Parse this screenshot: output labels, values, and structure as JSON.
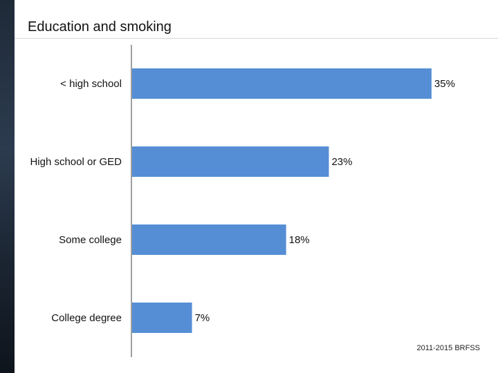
{
  "chart_data": {
    "type": "bar",
    "orientation": "horizontal",
    "title": "Education and smoking",
    "categories": [
      "< high school",
      "High school or GED",
      "Some college",
      "College degree"
    ],
    "values": [
      35,
      23,
      18,
      7
    ],
    "value_labels": [
      "35%",
      "23%",
      "18%",
      "7%"
    ],
    "unit": "%",
    "xlim": [
      0,
      38
    ],
    "grid": false,
    "legend": "none",
    "bar_color": "#558ed5"
  },
  "source_note": "2011-2015 BRFSS",
  "colors": {
    "bar": "#558ed5",
    "axis": "#7f7f7f",
    "text": "#111111",
    "side_strip": "#1f2a38"
  }
}
